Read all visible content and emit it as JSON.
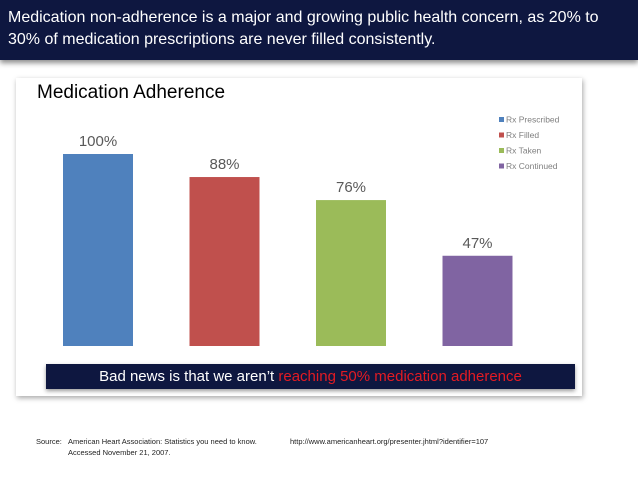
{
  "header": {
    "text": "Medication non-adherence is a major and growing public health concern, as 20% to 30% of medication prescriptions are never filled consistently."
  },
  "chart_data": {
    "type": "bar",
    "title": "Medication Adherence",
    "categories": [
      "Rx Prescribed",
      "Rx Filled",
      "Rx Taken",
      "Rx Continued"
    ],
    "values": [
      100,
      88,
      76,
      47
    ],
    "data_labels": [
      "100%",
      "88%",
      "76%",
      "47%"
    ],
    "colors": [
      "#4f81bd",
      "#c0504d",
      "#9bbb59",
      "#8064a2"
    ],
    "legend": [
      "Rx Prescribed",
      "Rx Filled",
      "Rx Taken",
      "Rx Continued"
    ],
    "legend_position": "top-right",
    "ylim": [
      0,
      100
    ],
    "xlabel": "",
    "ylabel": "",
    "grid": false
  },
  "callout": {
    "text_plain": "Bad news is that we aren’t ",
    "text_highlight": "reaching 50% medication adherence",
    "highlight_color": "#e31b23"
  },
  "source": {
    "label": "Source:",
    "text": "American Heart Association: Statistics you need to know. Accessed November 21, 2007.",
    "url": "http://www.americanheart.org/presenter.jhtml?identifier=107"
  }
}
